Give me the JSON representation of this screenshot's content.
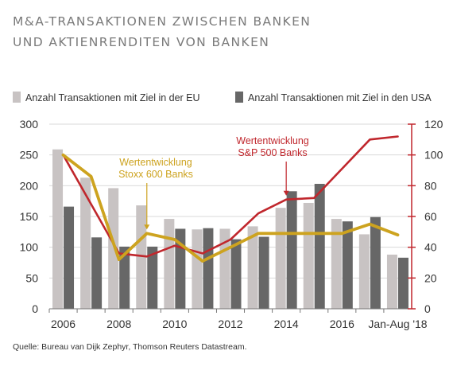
{
  "title_line1": "M&A-TRANSAKTIONEN ZWISCHEN BANKEN",
  "title_line2": "UND AKTIENRENDITEN VON BANKEN",
  "source": "Quelle: Bureau van Dijk Zephyr, Thomson Reuters Datastream.",
  "colors": {
    "eu_bar": "#c8c3c3",
    "us_bar": "#676767",
    "stoxx_line": "#cda31f",
    "sp_line": "#c0272d",
    "axis": "#777777",
    "right_axis": "#c0272d"
  },
  "chart_data": {
    "type": "bar",
    "categories": [
      "2006",
      "2007",
      "2008",
      "2009",
      "2010",
      "2011",
      "2012",
      "2013",
      "2014",
      "2015",
      "2016",
      "2017",
      "Jan-Aug '18"
    ],
    "xtick_labels": [
      {
        "index": 0,
        "text": "2006"
      },
      {
        "index": 2,
        "text": "2008"
      },
      {
        "index": 4,
        "text": "2010"
      },
      {
        "index": 6,
        "text": "2012"
      },
      {
        "index": 8,
        "text": "2014"
      },
      {
        "index": 10,
        "text": "2016"
      },
      {
        "index": 12,
        "text": "Jan-Aug '18"
      }
    ],
    "series": [
      {
        "name": "Anzahl Transaktionen mit Ziel in der EU",
        "type": "bar",
        "axis": "left",
        "values": [
          259,
          213,
          196,
          168,
          146,
          129,
          130,
          134,
          164,
          172,
          146,
          121,
          88
        ]
      },
      {
        "name": "Anzahl Transaktionen mit Ziel in den USA",
        "type": "bar",
        "axis": "left",
        "values": [
          166,
          116,
          101,
          101,
          130,
          131,
          113,
          117,
          191,
          203,
          142,
          149,
          83
        ]
      },
      {
        "name": "Wertentwicklung Stoxx 600 Banks",
        "type": "line",
        "axis": "right",
        "values": [
          100,
          86,
          32,
          49,
          45,
          31,
          40,
          49,
          49,
          49,
          49,
          55,
          48
        ]
      },
      {
        "name": "Wertentwicklung S&P 500 Banks",
        "type": "line",
        "axis": "right",
        "values": [
          100,
          68,
          36,
          34,
          41,
          36,
          45,
          62,
          71,
          72,
          91,
          110,
          112
        ]
      }
    ],
    "ylim_left": [
      0,
      300
    ],
    "yticks_left": [
      0,
      50,
      100,
      150,
      200,
      250,
      300
    ],
    "ylim_right": [
      0,
      120
    ],
    "yticks_right": [
      0,
      20,
      40,
      60,
      80,
      100,
      120
    ],
    "grid": "horizontal",
    "legend_position": "top",
    "annotations": [
      {
        "series_index": 2,
        "line1": "Wertentwicklung",
        "line2": "Stoxx 600 Banks"
      },
      {
        "series_index": 3,
        "line1": "Wertentwicklung",
        "line2": "S&P 500 Banks"
      }
    ]
  }
}
